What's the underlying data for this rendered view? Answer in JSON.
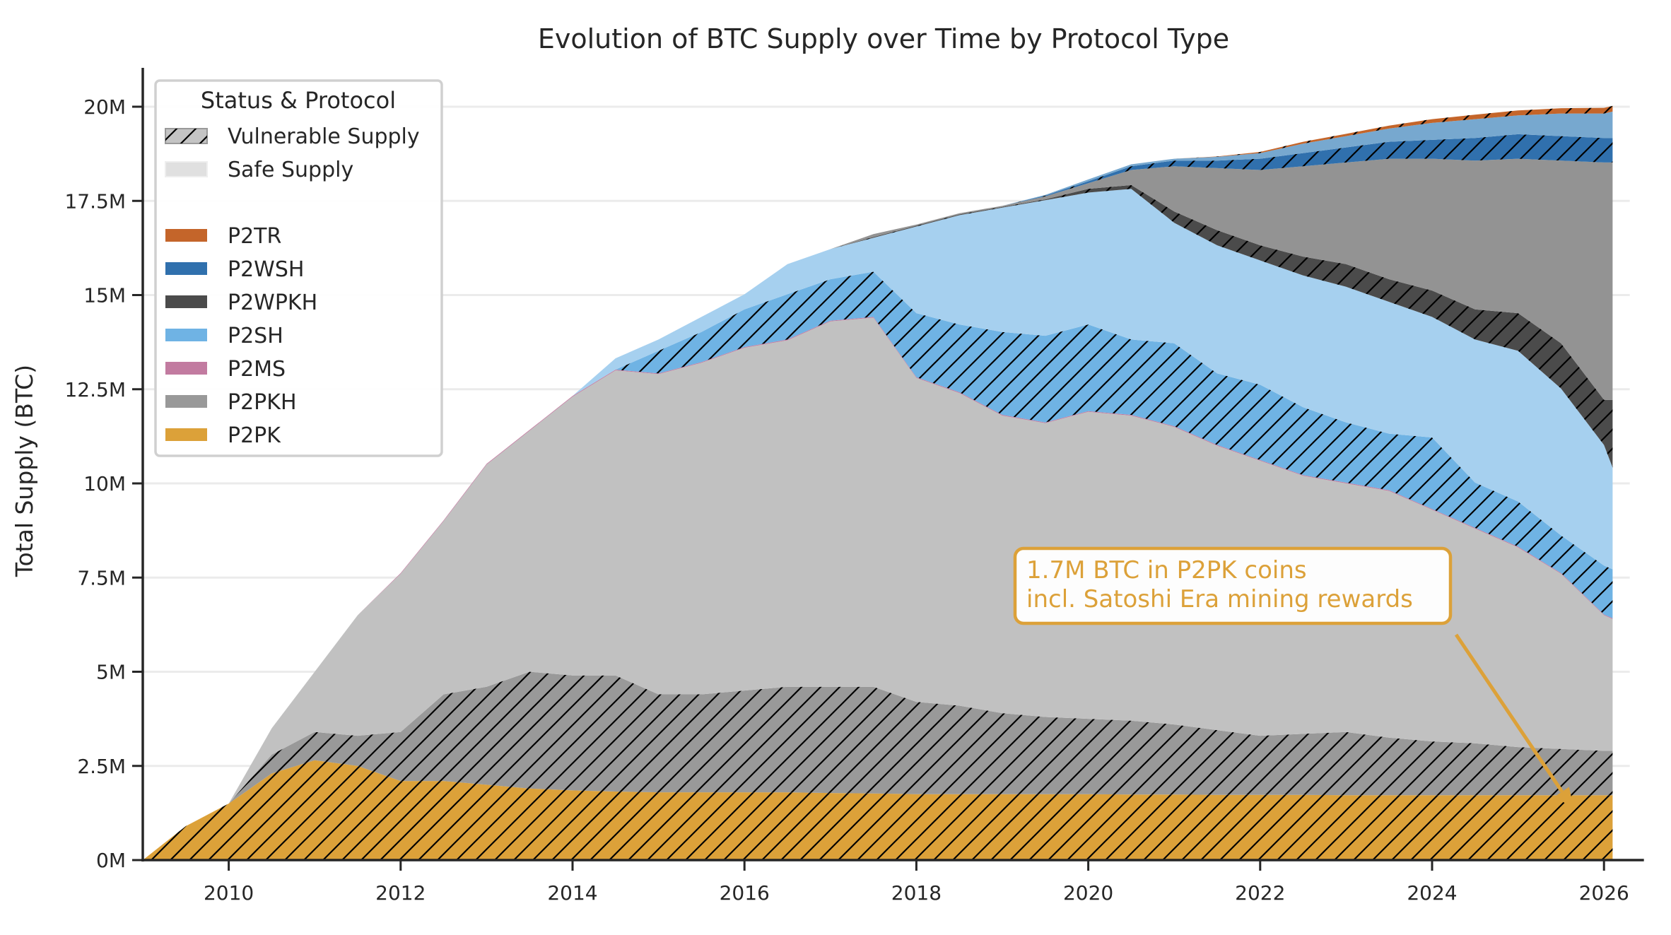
{
  "chart_data": {
    "type": "area",
    "stacked": true,
    "title": "Evolution of BTC Supply over Time by Protocol Type",
    "xlabel": "",
    "ylabel": "Total Supply (BTC)",
    "xlim": [
      2009,
      2026.3
    ],
    "ylim": [
      0,
      21
    ],
    "units": "million BTC",
    "grid": "horizontal",
    "x_ticks": [
      "2010",
      "2012",
      "2014",
      "2016",
      "2018",
      "2020",
      "2022",
      "2024",
      "2026"
    ],
    "y_ticks": [
      {
        "value": 0,
        "label": "0M"
      },
      {
        "value": 2.5,
        "label": "2.5M"
      },
      {
        "value": 5,
        "label": "5M"
      },
      {
        "value": 7.5,
        "label": "7.5M"
      },
      {
        "value": 10,
        "label": "10M"
      },
      {
        "value": 12.5,
        "label": "12.5M"
      },
      {
        "value": 15,
        "label": "15M"
      },
      {
        "value": 17.5,
        "label": "17.5M"
      },
      {
        "value": 20,
        "label": "20M"
      }
    ],
    "x": [
      2009,
      2009.5,
      2010,
      2010.5,
      2011,
      2011.5,
      2012,
      2012.5,
      2013,
      2013.5,
      2014,
      2014.5,
      2015,
      2015.5,
      2016,
      2016.5,
      2017,
      2017.5,
      2018,
      2018.5,
      2019,
      2019.5,
      2020,
      2020.5,
      2021,
      2021.5,
      2022,
      2022.5,
      2023,
      2023.5,
      2024,
      2024.5,
      2025,
      2025.5,
      2026,
      2026.1
    ],
    "series": [
      {
        "protocol": "P2PK",
        "status": "vulnerable",
        "color": "#dca139",
        "values": [
          0,
          0.9,
          1.5,
          2.3,
          2.65,
          2.5,
          2.1,
          2.1,
          2.0,
          1.9,
          1.85,
          1.82,
          1.8,
          1.8,
          1.8,
          1.8,
          1.78,
          1.77,
          1.75,
          1.75,
          1.75,
          1.75,
          1.75,
          1.74,
          1.74,
          1.73,
          1.73,
          1.73,
          1.72,
          1.72,
          1.72,
          1.72,
          1.72,
          1.72,
          1.72,
          1.72
        ]
      },
      {
        "protocol": "P2PKH",
        "status": "vulnerable",
        "color": "#999999",
        "values": [
          0,
          0,
          0,
          0.5,
          0.75,
          0.8,
          1.3,
          2.3,
          2.6,
          3.1,
          3.05,
          3.08,
          2.6,
          2.6,
          2.7,
          2.8,
          2.82,
          2.83,
          2.45,
          2.35,
          2.15,
          2.05,
          2.0,
          1.96,
          1.86,
          1.72,
          1.57,
          1.62,
          1.68,
          1.53,
          1.43,
          1.38,
          1.28,
          1.23,
          1.18,
          1.18
        ]
      },
      {
        "protocol": "P2PKH",
        "status": "safe",
        "color": "#c1c1c1",
        "values": [
          0,
          0,
          0,
          0.7,
          1.6,
          3.2,
          4.2,
          4.6,
          5.9,
          6.4,
          7.4,
          8.1,
          8.5,
          8.8,
          9.1,
          9.2,
          9.7,
          9.8,
          8.6,
          8.3,
          7.9,
          7.8,
          8.15,
          8.1,
          7.9,
          7.55,
          7.3,
          6.85,
          6.6,
          6.55,
          6.15,
          5.7,
          5.3,
          4.65,
          3.6,
          3.5
        ]
      },
      {
        "protocol": "P2MS",
        "status": "safe",
        "color": "#c27ba0",
        "values": [
          0,
          0,
          0,
          0,
          0,
          0,
          0.02,
          0.02,
          0.02,
          0.02,
          0.02,
          0.02,
          0.02,
          0.02,
          0.02,
          0.02,
          0.02,
          0.02,
          0.02,
          0.02,
          0.02,
          0.02,
          0.02,
          0.02,
          0.02,
          0.02,
          0.02,
          0.02,
          0.02,
          0.02,
          0.02,
          0.02,
          0.02,
          0.02,
          0.02,
          0.02
        ]
      },
      {
        "protocol": "P2SH",
        "status": "vulnerable",
        "color": "#6fb3e4",
        "values": [
          0,
          0,
          0,
          0,
          0,
          0,
          0,
          0,
          0,
          0,
          0,
          0,
          0.6,
          0.8,
          1.0,
          1.2,
          1.1,
          1.2,
          1.7,
          1.8,
          2.2,
          2.3,
          2.3,
          2.0,
          2.2,
          1.9,
          2.0,
          1.8,
          1.6,
          1.5,
          1.9,
          1.2,
          1.2,
          1.0,
          1.3,
          1.3
        ]
      },
      {
        "protocol": "P2SH",
        "status": "safe",
        "color": "#a6d0ef",
        "values": [
          0,
          0,
          0,
          0,
          0,
          0,
          0,
          0,
          0,
          0,
          0,
          0.3,
          0.3,
          0.4,
          0.4,
          0.8,
          0.8,
          0.9,
          2.3,
          2.9,
          3.3,
          3.6,
          3.5,
          4.0,
          3.2,
          3.4,
          3.3,
          3.5,
          3.6,
          3.5,
          3.2,
          3.8,
          4.0,
          3.9,
          3.2,
          2.7
        ]
      },
      {
        "protocol": "P2WPKH",
        "status": "vulnerable",
        "color": "#4b4b4b",
        "values": [
          0,
          0,
          0,
          0,
          0,
          0,
          0,
          0,
          0,
          0,
          0,
          0,
          0,
          0,
          0,
          0,
          0,
          0.02,
          0.02,
          0.02,
          0.02,
          0.02,
          0.1,
          0.1,
          0.3,
          0.4,
          0.4,
          0.5,
          0.6,
          0.6,
          0.7,
          0.8,
          1.0,
          1.2,
          1.2,
          1.8
        ]
      },
      {
        "protocol": "P2WPKH",
        "status": "safe",
        "color": "#939393",
        "values": [
          0,
          0,
          0,
          0,
          0,
          0,
          0,
          0,
          0,
          0,
          0,
          0,
          0,
          0,
          0,
          0,
          0,
          0.08,
          0.03,
          0.03,
          0.03,
          0.08,
          0.15,
          0.4,
          1.2,
          1.65,
          2.0,
          2.4,
          2.7,
          3.2,
          3.5,
          3.95,
          4.1,
          4.85,
          6.3,
          6.3
        ]
      },
      {
        "protocol": "P2WSH",
        "status": "vulnerable",
        "color": "#3070ad",
        "values": [
          0,
          0,
          0,
          0,
          0,
          0,
          0,
          0,
          0,
          0,
          0,
          0,
          0,
          0,
          0,
          0,
          0,
          0,
          0,
          0,
          0,
          0.02,
          0.05,
          0.1,
          0.15,
          0.2,
          0.3,
          0.35,
          0.4,
          0.45,
          0.5,
          0.6,
          0.65,
          0.65,
          0.65,
          0.65
        ]
      },
      {
        "protocol": "P2WSH",
        "status": "safe",
        "color": "#77a8cf",
        "values": [
          0,
          0,
          0,
          0,
          0,
          0,
          0,
          0,
          0,
          0,
          0,
          0,
          0,
          0,
          0,
          0,
          0,
          0,
          0,
          0,
          0,
          0.02,
          0.05,
          0.05,
          0.05,
          0.1,
          0.15,
          0.25,
          0.3,
          0.35,
          0.45,
          0.5,
          0.5,
          0.6,
          0.65,
          0.7
        ]
      },
      {
        "protocol": "P2TR",
        "status": "vulnerable",
        "color": "#c4652a",
        "values": [
          0,
          0,
          0,
          0,
          0,
          0,
          0,
          0,
          0,
          0,
          0,
          0,
          0,
          0,
          0,
          0,
          0,
          0,
          0,
          0,
          0,
          0,
          0,
          0,
          0,
          0.01,
          0.03,
          0.05,
          0.06,
          0.08,
          0.1,
          0.12,
          0.13,
          0.14,
          0.15,
          0.15
        ]
      }
    ],
    "legend": {
      "title": "Status & Protocol",
      "placement": "upper-left",
      "status_entries": [
        {
          "label": "Vulnerable Supply",
          "color": "#c4c4c4",
          "hatch": true
        },
        {
          "label": "Safe Supply",
          "color": "#e0e0e0",
          "hatch": false
        }
      ],
      "protocol_entries": [
        {
          "label": "P2TR",
          "color": "#c4652a"
        },
        {
          "label": "P2WSH",
          "color": "#3070ad"
        },
        {
          "label": "P2WPKH",
          "color": "#4b4b4b"
        },
        {
          "label": "P2SH",
          "color": "#6fb3e4"
        },
        {
          "label": "P2MS",
          "color": "#c27ba0"
        },
        {
          "label": "P2PKH",
          "color": "#999999"
        },
        {
          "label": "P2PK",
          "color": "#dca139"
        }
      ]
    },
    "annotation": {
      "lines": [
        "1.7M BTC in P2PK coins",
        "incl. Satoshi Era mining rewards"
      ],
      "color": "#dca139",
      "arrow_target": {
        "x": 2025.65,
        "y": 1.35
      }
    }
  }
}
